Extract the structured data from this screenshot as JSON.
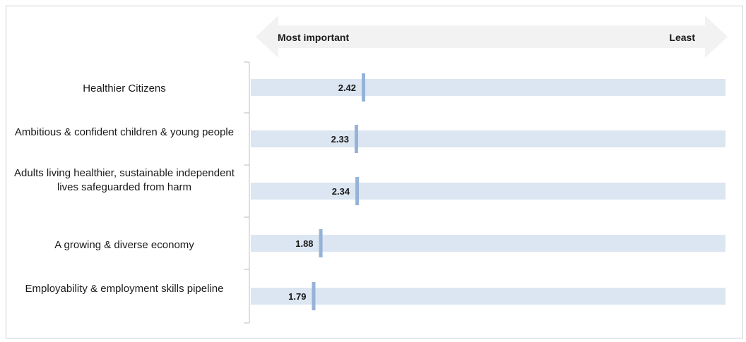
{
  "chart_data": {
    "type": "bar",
    "arrow": {
      "left_label": "Most important",
      "right_label": "Least"
    },
    "categories": [
      "Healthier Citizens",
      "Ambitious & confident children & young people",
      "Adults living healthier, sustainable independent lives safeguarded from harm",
      "A growing & diverse economy",
      "Employability & employment skills pipeline"
    ],
    "values": [
      2.42,
      2.33,
      2.34,
      1.88,
      1.79
    ],
    "xlim": [
      1,
      7
    ],
    "colors": {
      "track": "#dce6f2",
      "marker": "#95b3d7",
      "arrow": "#f2f2f2",
      "axis": "#bfbfbf"
    }
  }
}
